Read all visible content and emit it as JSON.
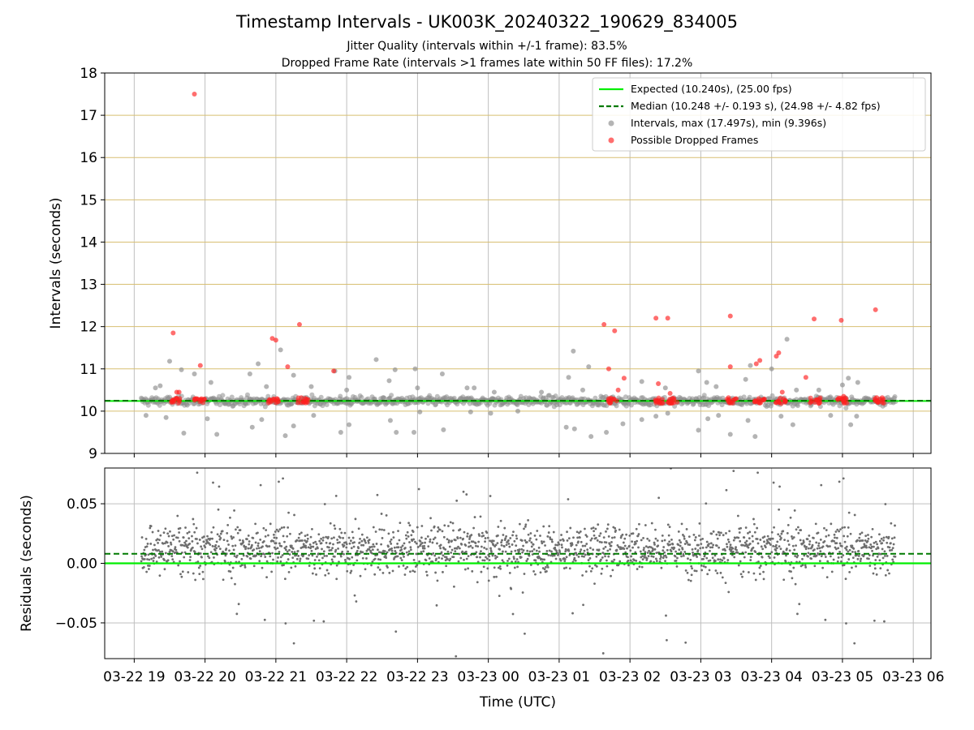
{
  "title": "Timestamp Intervals - UK003K_20240322_190629_834005",
  "subtitles": [
    "Jitter Quality (intervals within +/-1 frame): 83.5%",
    "Dropped Frame Rate (intervals >1 frames late within 50 FF files): 17.2%"
  ],
  "colors": {
    "expected": "#00ee00",
    "median": "#007a00",
    "intervals": "#8c8c8c",
    "dropped": "#ff2020",
    "grid": "#bfbfbf",
    "fps_grid": "#d8bf72"
  },
  "chart_data": [
    {
      "type": "scatter",
      "panel": "top",
      "ylabel": "Intervals (seconds)",
      "ylim": [
        9,
        18
      ],
      "yticks": [
        9,
        10,
        11,
        12,
        13,
        14,
        15,
        16,
        17,
        18
      ],
      "grid": true,
      "legend_position": "top-right",
      "reference_lines": [
        {
          "name": "Expected (10.240s), (25.00 fps)",
          "y": 10.24,
          "style": "solid"
        },
        {
          "name": "Median (10.248 +/- 0.193 s), (24.98 +/- 4.82 fps)",
          "y": 10.248,
          "style": "dashed"
        }
      ],
      "series": [
        {
          "name": "Intervals, max (17.497s), min (9.396s)",
          "points": [
            [
              "2024-03-22 19:10",
              9.9
            ],
            [
              "2024-03-22 19:18",
              10.55
            ],
            [
              "2024-03-22 19:27",
              9.85
            ],
            [
              "2024-03-22 19:22",
              10.6
            ],
            [
              "2024-03-22 19:30",
              11.18
            ],
            [
              "2024-03-22 19:42",
              9.48
            ],
            [
              "2024-03-22 19:40",
              10.98
            ],
            [
              "2024-03-22 19:51",
              10.88
            ],
            [
              "2024-03-22 20:05",
              10.68
            ],
            [
              "2024-03-22 20:02",
              9.82
            ],
            [
              "2024-03-22 20:10",
              9.45
            ],
            [
              "2024-03-22 20:38",
              10.88
            ],
            [
              "2024-03-22 20:40",
              9.62
            ],
            [
              "2024-03-22 20:45",
              11.12
            ],
            [
              "2024-03-22 20:48",
              9.8
            ],
            [
              "2024-03-22 20:52",
              10.58
            ],
            [
              "2024-03-22 21:04",
              11.45
            ],
            [
              "2024-03-22 21:08",
              9.42
            ],
            [
              "2024-03-22 21:15",
              10.85
            ],
            [
              "2024-03-22 21:15",
              9.65
            ],
            [
              "2024-03-22 21:30",
              10.58
            ],
            [
              "2024-03-22 21:32",
              9.9
            ],
            [
              "2024-03-22 21:50",
              10.95
            ],
            [
              "2024-03-22 21:55",
              9.5
            ],
            [
              "2024-03-22 22:00",
              10.5
            ],
            [
              "2024-03-22 22:02",
              10.8
            ],
            [
              "2024-03-22 22:02",
              9.68
            ],
            [
              "2024-03-22 22:25",
              11.22
            ],
            [
              "2024-03-22 22:36",
              10.72
            ],
            [
              "2024-03-22 22:37",
              9.78
            ],
            [
              "2024-03-22 22:42",
              9.5
            ],
            [
              "2024-03-22 22:41",
              10.98
            ],
            [
              "2024-03-22 22:57",
              9.5
            ],
            [
              "2024-03-22 22:58",
              11.0
            ],
            [
              "2024-03-22 23:00",
              10.55
            ],
            [
              "2024-03-22 23:02",
              9.98
            ],
            [
              "2024-03-22 23:21",
              10.88
            ],
            [
              "2024-03-22 23:22",
              9.56
            ],
            [
              "2024-03-22 23:42",
              10.55
            ],
            [
              "2024-03-22 23:45",
              9.98
            ],
            [
              "2024-03-22 23:48",
              10.55
            ],
            [
              "2024-03-23 00:02",
              9.95
            ],
            [
              "2024-03-23 00:05",
              10.45
            ],
            [
              "2024-03-23 00:25",
              10.0
            ],
            [
              "2024-03-23 00:45",
              10.45
            ],
            [
              "2024-03-23 00:58",
              10.15
            ],
            [
              "2024-03-23 01:08",
              10.8
            ],
            [
              "2024-03-23 01:06",
              9.62
            ],
            [
              "2024-03-23 01:12",
              11.42
            ],
            [
              "2024-03-23 01:13",
              9.58
            ],
            [
              "2024-03-23 01:20",
              10.5
            ],
            [
              "2024-03-23 01:27",
              9.4
            ],
            [
              "2024-03-23 01:25",
              11.05
            ],
            [
              "2024-03-23 01:40",
              9.5
            ],
            [
              "2024-03-23 01:54",
              9.7
            ],
            [
              "2024-03-23 02:10",
              10.7
            ],
            [
              "2024-03-23 02:10",
              9.8
            ],
            [
              "2024-03-23 02:22",
              9.88
            ],
            [
              "2024-03-23 02:30",
              10.55
            ],
            [
              "2024-03-23 02:32",
              9.95
            ],
            [
              "2024-03-23 02:58",
              10.95
            ],
            [
              "2024-03-23 02:58",
              9.55
            ],
            [
              "2024-03-23 03:05",
              10.68
            ],
            [
              "2024-03-23 03:06",
              9.82
            ],
            [
              "2024-03-23 03:13",
              10.58
            ],
            [
              "2024-03-23 03:15",
              9.9
            ],
            [
              "2024-03-23 03:25",
              9.45
            ],
            [
              "2024-03-23 03:38",
              10.75
            ],
            [
              "2024-03-23 03:40",
              9.78
            ],
            [
              "2024-03-23 03:42",
              11.08
            ],
            [
              "2024-03-23 03:46",
              9.4
            ],
            [
              "2024-03-23 04:00",
              11.0
            ],
            [
              "2024-03-23 04:08",
              9.88
            ],
            [
              "2024-03-23 04:13",
              11.7
            ],
            [
              "2024-03-23 04:18",
              9.68
            ],
            [
              "2024-03-23 04:21",
              10.5
            ],
            [
              "2024-03-23 04:40",
              10.5
            ],
            [
              "2024-03-23 04:50",
              9.9
            ],
            [
              "2024-03-23 05:00",
              10.62
            ],
            [
              "2024-03-23 05:05",
              10.78
            ],
            [
              "2024-03-23 05:07",
              9.68
            ],
            [
              "2024-03-23 05:12",
              9.88
            ],
            [
              "2024-03-23 05:13",
              10.68
            ],
            [
              "2024-03-23 05:18",
              10.2
            ]
          ]
        },
        {
          "name": "Possible Dropped Frames",
          "points": [
            [
              "2024-03-22 19:33",
              11.85
            ],
            [
              "2024-03-22 19:36",
              10.45
            ],
            [
              "2024-03-22 19:38",
              10.45
            ],
            [
              "2024-03-22 19:51",
              17.5
            ],
            [
              "2024-03-22 19:56",
              11.08
            ],
            [
              "2024-03-22 20:57",
              11.72
            ],
            [
              "2024-03-22 21:00",
              11.68
            ],
            [
              "2024-03-22 21:20",
              12.05
            ],
            [
              "2024-03-22 21:10",
              11.05
            ],
            [
              "2024-03-22 21:25",
              10.3
            ],
            [
              "2024-03-22 21:49",
              10.95
            ],
            [
              "2024-03-23 01:38",
              12.05
            ],
            [
              "2024-03-23 01:47",
              11.9
            ],
            [
              "2024-03-23 01:42",
              11.0
            ],
            [
              "2024-03-23 01:50",
              10.5
            ],
            [
              "2024-03-23 01:55",
              10.78
            ],
            [
              "2024-03-23 02:22",
              12.2
            ],
            [
              "2024-03-23 02:32",
              12.2
            ],
            [
              "2024-03-23 02:24",
              10.65
            ],
            [
              "2024-03-23 02:34",
              10.42
            ],
            [
              "2024-03-23 03:25",
              12.25
            ],
            [
              "2024-03-23 03:25",
              11.05
            ],
            [
              "2024-03-23 03:47",
              11.12
            ],
            [
              "2024-03-23 03:50",
              11.2
            ],
            [
              "2024-03-23 04:04",
              11.3
            ],
            [
              "2024-03-23 04:06",
              11.38
            ],
            [
              "2024-03-23 04:09",
              10.45
            ],
            [
              "2024-03-23 04:29",
              10.8
            ],
            [
              "2024-03-23 04:36",
              12.18
            ],
            [
              "2024-03-23 04:59",
              12.15
            ],
            [
              "2024-03-23 05:01",
              10.35
            ],
            [
              "2024-03-23 05:28",
              12.4
            ],
            [
              "2024-03-23 05:29",
              10.32
            ]
          ],
          "clusters_at": [
            "2024-03-22 19:35",
            "2024-03-22 19:55",
            "2024-03-22 20:58",
            "2024-03-22 21:23",
            "2024-03-23 01:45",
            "2024-03-23 02:26",
            "2024-03-23 02:36",
            "2024-03-23 03:26",
            "2024-03-23 03:50",
            "2024-03-23 04:08",
            "2024-03-23 04:37",
            "2024-03-23 05:00",
            "2024-03-23 05:32"
          ]
        }
      ]
    },
    {
      "type": "scatter",
      "panel": "bottom",
      "ylabel": "Residuals (seconds)",
      "xlabel": "Time (UTC)",
      "ylim": [
        -0.08,
        0.08
      ],
      "yticks": [
        0.05,
        0.0,
        -0.05
      ],
      "ytick_labels": [
        "0.05",
        "0.00",
        "−0.05"
      ],
      "grid": true,
      "reference_lines": [
        {
          "name": "Expected",
          "y": 0.0,
          "style": "solid"
        },
        {
          "name": "Median",
          "y": 0.008,
          "style": "dashed"
        }
      ],
      "series": [
        {
          "name": "Residuals",
          "description_range": "~2000 points spread between -0.08 and 0.08, densest around 0.00 to 0.03"
        }
      ]
    }
  ],
  "x_axis": {
    "xlim": [
      "2024-03-22 18:35",
      "2024-03-23 06:15"
    ],
    "ticks": [
      "2024-03-22 19:00",
      "2024-03-22 20:00",
      "2024-03-22 21:00",
      "2024-03-22 22:00",
      "2024-03-22 23:00",
      "2024-03-23 00:00",
      "2024-03-23 01:00",
      "2024-03-23 02:00",
      "2024-03-23 03:00",
      "2024-03-23 04:00",
      "2024-03-23 05:00",
      "2024-03-23 06:00"
    ],
    "tick_labels": [
      "03-22 19",
      "03-22 20",
      "03-22 21",
      "03-22 22",
      "03-22 23",
      "03-23 00",
      "03-23 01",
      "03-23 02",
      "03-23 03",
      "03-23 04",
      "03-23 05",
      "03-23 06"
    ],
    "data_start": "2024-03-22 19:06",
    "data_end": "2024-03-23 05:45"
  }
}
